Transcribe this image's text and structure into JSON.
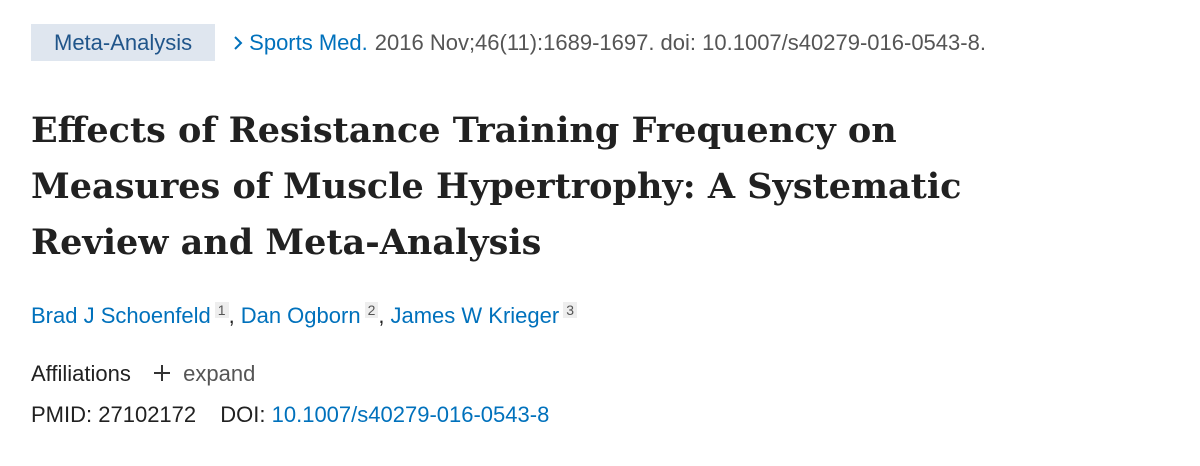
{
  "header": {
    "badge": "Meta-Analysis",
    "journal": "Sports Med.",
    "citation": "2016 Nov;46(11):1689-1697. doi: 10.1007/s40279-016-0543-8."
  },
  "title_lines": [
    "Effects of Resistance Training Frequency on",
    "Measures of Muscle Hypertrophy: A Systematic",
    "Review and Meta-Analysis"
  ],
  "authors": [
    {
      "name": "Brad J Schoenfeld",
      "affiliation": "1"
    },
    {
      "name": "Dan Ogborn",
      "affiliation": "2"
    },
    {
      "name": "James W Krieger",
      "affiliation": "3"
    }
  ],
  "author_separator": ",",
  "affiliations": {
    "label": "Affiliations",
    "toggle": "expand"
  },
  "identifiers": {
    "pmid_label": "PMID:",
    "pmid": "27102172",
    "doi_label": "DOI:",
    "doi": "10.1007/s40279-016-0543-8"
  }
}
